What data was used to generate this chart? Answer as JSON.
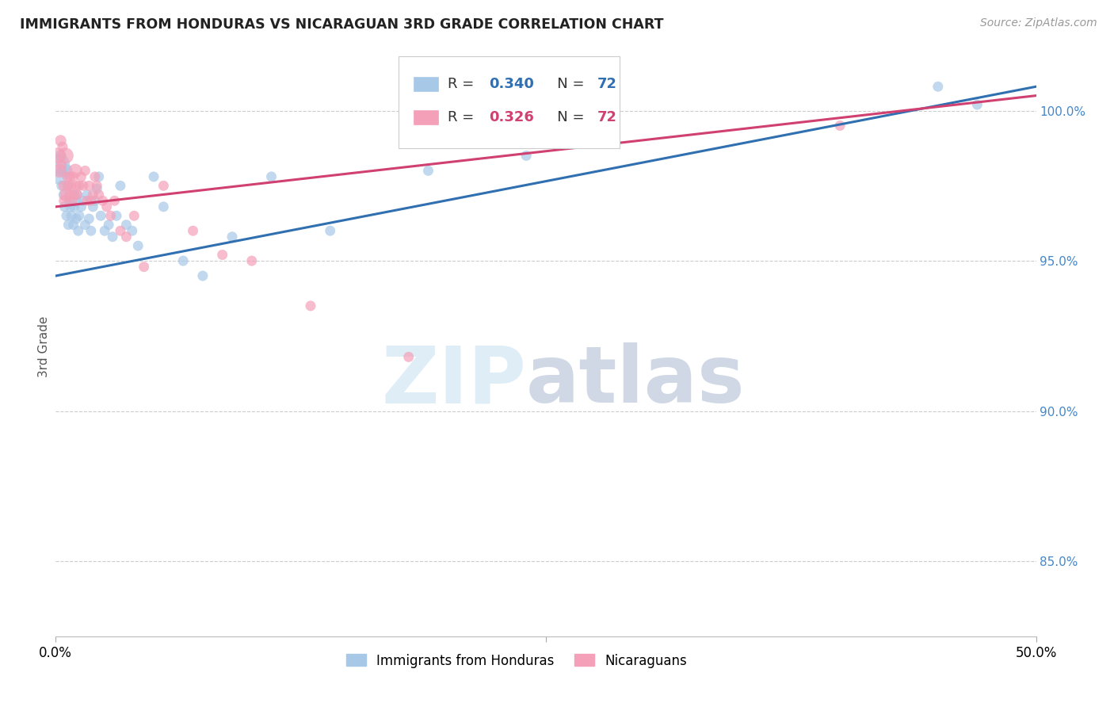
{
  "title": "IMMIGRANTS FROM HONDURAS VS NICARAGUAN 3RD GRADE CORRELATION CHART",
  "source": "Source: ZipAtlas.com",
  "ylabel": "3rd Grade",
  "ylabel_right_vals": [
    100.0,
    95.0,
    90.0,
    85.0
  ],
  "xlim": [
    0.0,
    50.0
  ],
  "ylim": [
    82.5,
    101.8
  ],
  "legend_blue_r": "0.340",
  "legend_blue_n": "72",
  "legend_pink_r": "0.326",
  "legend_pink_n": "72",
  "blue_scatter_color": "#a8c8e8",
  "pink_scatter_color": "#f4a0b8",
  "trend_blue": "#3070b0",
  "trend_pink": "#d04070",
  "legend_label_blue": "Immigrants from Honduras",
  "legend_label_pink": "Nicaraguans",
  "blue_x": [
    0.15,
    0.2,
    0.25,
    0.3,
    0.35,
    0.4,
    0.45,
    0.5,
    0.55,
    0.6,
    0.65,
    0.7,
    0.75,
    0.8,
    0.85,
    0.9,
    0.95,
    1.0,
    1.05,
    1.1,
    1.15,
    1.2,
    1.3,
    1.4,
    1.5,
    1.6,
    1.7,
    1.8,
    1.9,
    2.0,
    2.1,
    2.2,
    2.3,
    2.5,
    2.7,
    2.9,
    3.1,
    3.3,
    3.6,
    3.9,
    4.2,
    5.0,
    5.5,
    6.5,
    7.5,
    9.0,
    11.0,
    14.0,
    19.0,
    24.0,
    45.0,
    47.0
  ],
  "blue_y": [
    98.2,
    97.8,
    98.5,
    97.5,
    98.0,
    97.2,
    96.8,
    98.0,
    96.5,
    97.5,
    96.2,
    97.0,
    96.8,
    96.5,
    97.2,
    96.2,
    96.8,
    97.0,
    96.4,
    97.2,
    96.0,
    96.5,
    96.8,
    97.0,
    96.2,
    97.2,
    96.4,
    96.0,
    96.8,
    97.0,
    97.4,
    97.8,
    96.5,
    96.0,
    96.2,
    95.8,
    96.5,
    97.5,
    96.2,
    96.0,
    95.5,
    97.8,
    96.8,
    95.0,
    94.5,
    95.8,
    97.8,
    96.0,
    98.0,
    98.5,
    100.8,
    100.2
  ],
  "blue_sizes": [
    400,
    200,
    100,
    80,
    80,
    80,
    80,
    150,
    80,
    80,
    80,
    80,
    80,
    80,
    80,
    80,
    80,
    120,
    80,
    80,
    80,
    80,
    80,
    80,
    80,
    80,
    80,
    80,
    80,
    80,
    80,
    80,
    80,
    80,
    80,
    80,
    80,
    80,
    80,
    80,
    80,
    80,
    80,
    80,
    80,
    80,
    80,
    80,
    80,
    80,
    80,
    80
  ],
  "pink_x": [
    0.1,
    0.2,
    0.25,
    0.3,
    0.35,
    0.4,
    0.45,
    0.5,
    0.55,
    0.6,
    0.65,
    0.7,
    0.75,
    0.8,
    0.85,
    0.9,
    0.95,
    1.0,
    1.05,
    1.1,
    1.2,
    1.3,
    1.4,
    1.5,
    1.6,
    1.7,
    1.8,
    1.9,
    2.0,
    2.1,
    2.2,
    2.4,
    2.6,
    2.8,
    3.0,
    3.3,
    3.6,
    4.0,
    4.5,
    5.5,
    7.0,
    8.5,
    10.0,
    13.0,
    18.0,
    24.0,
    40.0
  ],
  "pink_y": [
    98.5,
    98.0,
    99.0,
    98.2,
    98.8,
    97.5,
    97.0,
    98.5,
    97.2,
    97.8,
    97.5,
    97.2,
    97.8,
    97.5,
    97.0,
    97.8,
    97.2,
    98.0,
    97.5,
    97.2,
    97.5,
    97.8,
    97.5,
    98.0,
    97.0,
    97.5,
    97.0,
    97.2,
    97.8,
    97.5,
    97.2,
    97.0,
    96.8,
    96.5,
    97.0,
    96.0,
    95.8,
    96.5,
    94.8,
    97.5,
    96.0,
    95.2,
    95.0,
    93.5,
    91.8,
    100.5,
    99.5
  ],
  "pink_sizes": [
    200,
    150,
    100,
    80,
    80,
    80,
    100,
    200,
    150,
    80,
    80,
    80,
    80,
    80,
    80,
    80,
    80,
    150,
    80,
    80,
    80,
    80,
    80,
    80,
    80,
    80,
    80,
    80,
    80,
    80,
    80,
    80,
    80,
    80,
    80,
    80,
    80,
    80,
    80,
    80,
    80,
    80,
    80,
    80,
    80,
    80,
    80
  ],
  "trend_blue_x0": 0.0,
  "trend_blue_y0": 94.5,
  "trend_blue_x1": 50.0,
  "trend_blue_y1": 100.8,
  "trend_pink_x0": 0.0,
  "trend_pink_y0": 96.8,
  "trend_pink_x1": 50.0,
  "trend_pink_y1": 100.5,
  "watermark_zip": "ZIP",
  "watermark_atlas": "atlas",
  "background_color": "#ffffff",
  "grid_color": "#cccccc",
  "xtick_center_x": 25.0
}
